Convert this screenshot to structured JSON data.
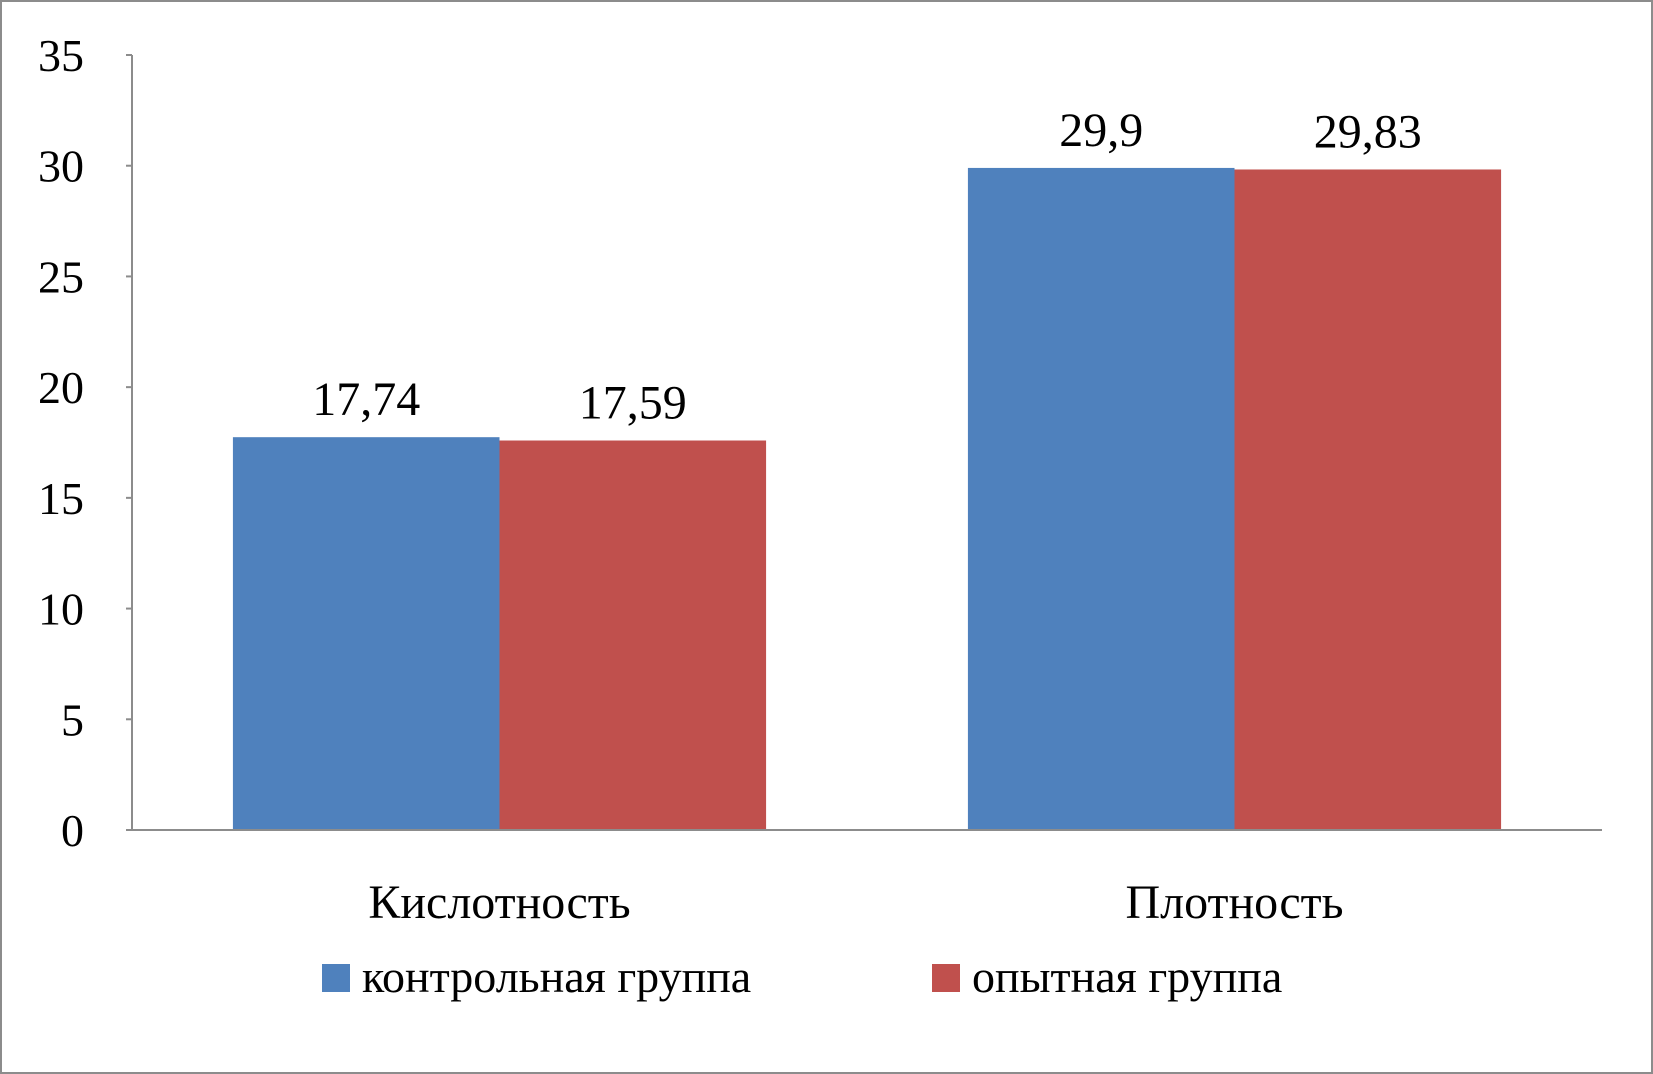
{
  "chart_data": {
    "type": "bar",
    "categories": [
      "Кислотность",
      "Плотность"
    ],
    "series": [
      {
        "name": "контрольная группа",
        "values": [
          17.74,
          29.9
        ],
        "labels": [
          "17,74",
          "29,9"
        ],
        "color": "#4f81bd"
      },
      {
        "name": "опытная группа",
        "values": [
          17.59,
          29.83
        ],
        "labels": [
          "17,59",
          "29,83"
        ],
        "color": "#c0504d"
      }
    ],
    "title": "",
    "xlabel": "",
    "ylabel": "",
    "ylim": [
      0,
      35
    ],
    "yticks": [
      "0",
      "5",
      "10",
      "15",
      "20",
      "25",
      "30",
      "35"
    ],
    "grid": false,
    "legend": "bottom"
  }
}
